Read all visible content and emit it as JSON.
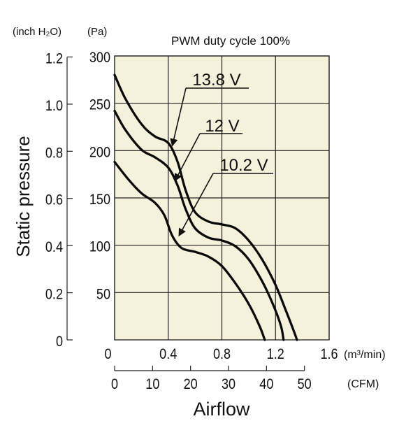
{
  "chart_data": {
    "type": "line",
    "title": "PWM duty cycle 100%",
    "xlabel": "Airflow",
    "ylabel": "Static pressure",
    "x_unit_primary": "(m³/min)",
    "x_unit_secondary": "(CFM)",
    "y_unit_left": "(inch H₂O)",
    "y_unit_right": "(Pa)",
    "xlim": [
      0,
      1.6
    ],
    "ylim": [
      0,
      300
    ],
    "grid": true,
    "x_ticks": [
      "0",
      "0.4",
      "0.8",
      "1.2",
      "1.6"
    ],
    "x_ticks_cfm": [
      "0",
      "10",
      "20",
      "30",
      "40",
      "50"
    ],
    "y_ticks_pa": [
      "50",
      "100",
      "150",
      "200",
      "250",
      "300"
    ],
    "y_ticks_inch": [
      "0",
      "0.2",
      "0.4",
      "0.6",
      "0.8",
      "1.0",
      "1.2"
    ],
    "series": [
      {
        "name": "13.8 V",
        "points": [
          [
            0,
            280
          ],
          [
            0.08,
            255
          ],
          [
            0.2,
            228
          ],
          [
            0.3,
            215
          ],
          [
            0.4,
            208
          ],
          [
            0.47,
            188
          ],
          [
            0.53,
            158
          ],
          [
            0.6,
            135
          ],
          [
            0.7,
            125
          ],
          [
            0.8,
            122
          ],
          [
            0.9,
            118
          ],
          [
            1.0,
            105
          ],
          [
            1.1,
            85
          ],
          [
            1.2,
            58
          ],
          [
            1.28,
            30
          ],
          [
            1.34,
            8
          ],
          [
            1.36,
            0
          ]
        ]
      },
      {
        "name": "12 V",
        "points": [
          [
            0,
            242
          ],
          [
            0.08,
            222
          ],
          [
            0.2,
            201
          ],
          [
            0.3,
            193
          ],
          [
            0.4,
            182
          ],
          [
            0.47,
            163
          ],
          [
            0.53,
            138
          ],
          [
            0.6,
            118
          ],
          [
            0.7,
            108
          ],
          [
            0.8,
            105
          ],
          [
            0.9,
            99
          ],
          [
            1.0,
            85
          ],
          [
            1.1,
            62
          ],
          [
            1.18,
            38
          ],
          [
            1.24,
            15
          ],
          [
            1.26,
            0
          ]
        ]
      },
      {
        "name": "10.2 V",
        "points": [
          [
            0,
            188
          ],
          [
            0.1,
            170
          ],
          [
            0.2,
            155
          ],
          [
            0.3,
            145
          ],
          [
            0.37,
            132
          ],
          [
            0.43,
            110
          ],
          [
            0.5,
            97
          ],
          [
            0.6,
            93
          ],
          [
            0.7,
            88
          ],
          [
            0.8,
            78
          ],
          [
            0.9,
            60
          ],
          [
            1.0,
            38
          ],
          [
            1.08,
            15
          ],
          [
            1.12,
            0
          ]
        ]
      }
    ]
  }
}
